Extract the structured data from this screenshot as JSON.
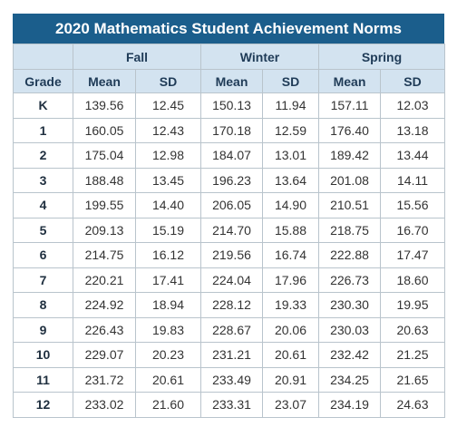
{
  "title": "2020 Mathematics Student Achievement Norms",
  "table": {
    "groups": [
      "Fall",
      "Winter",
      "Spring"
    ],
    "columns": [
      "Grade",
      "Mean",
      "SD",
      "Mean",
      "SD",
      "Mean",
      "SD"
    ],
    "rows": [
      [
        "K",
        "139.56",
        "12.45",
        "150.13",
        "11.94",
        "157.11",
        "12.03"
      ],
      [
        "1",
        "160.05",
        "12.43",
        "170.18",
        "12.59",
        "176.40",
        "13.18"
      ],
      [
        "2",
        "175.04",
        "12.98",
        "184.07",
        "13.01",
        "189.42",
        "13.44"
      ],
      [
        "3",
        "188.48",
        "13.45",
        "196.23",
        "13.64",
        "201.08",
        "14.11"
      ],
      [
        "4",
        "199.55",
        "14.40",
        "206.05",
        "14.90",
        "210.51",
        "15.56"
      ],
      [
        "5",
        "209.13",
        "15.19",
        "214.70",
        "15.88",
        "218.75",
        "16.70"
      ],
      [
        "6",
        "214.75",
        "16.12",
        "219.56",
        "16.74",
        "222.88",
        "17.47"
      ],
      [
        "7",
        "220.21",
        "17.41",
        "224.04",
        "17.96",
        "226.73",
        "18.60"
      ],
      [
        "8",
        "224.92",
        "18.94",
        "228.12",
        "19.33",
        "230.30",
        "19.95"
      ],
      [
        "9",
        "226.43",
        "19.83",
        "228.67",
        "20.06",
        "230.03",
        "20.63"
      ],
      [
        "10",
        "229.07",
        "20.23",
        "231.21",
        "20.61",
        "232.42",
        "21.25"
      ],
      [
        "11",
        "231.72",
        "20.61",
        "233.49",
        "20.91",
        "234.25",
        "21.65"
      ],
      [
        "12",
        "233.02",
        "21.60",
        "233.31",
        "23.07",
        "234.19",
        "24.63"
      ]
    ]
  }
}
